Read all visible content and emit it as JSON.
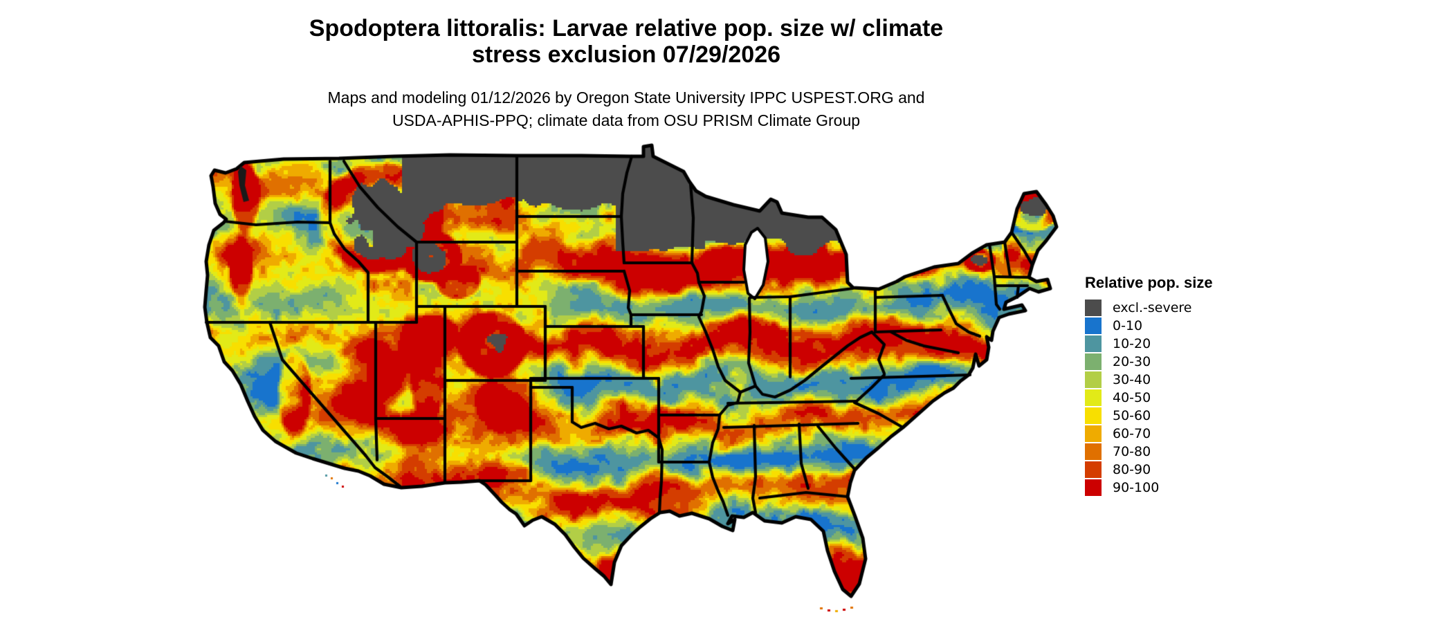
{
  "title": {
    "line1": "Spodoptera littoralis: Larvae relative pop. size w/ climate",
    "line2": "stress exclusion 07/29/2026"
  },
  "subtitle": {
    "line1": "Maps and modeling 01/12/2026 by Oregon State University IPPC USPEST.ORG and",
    "line2": "USDA-APHIS-PPQ; climate data from OSU PRISM Climate Group"
  },
  "legend": {
    "title": "Relative pop. size",
    "items": [
      {
        "label": "excl.-severe",
        "color": "#4C4C4C"
      },
      {
        "label": "0-10",
        "color": "#1874CD"
      },
      {
        "label": "10-20",
        "color": "#4E95A0"
      },
      {
        "label": "20-30",
        "color": "#7CB06F"
      },
      {
        "label": "30-40",
        "color": "#B2CE46"
      },
      {
        "label": "40-50",
        "color": "#E2EA18"
      },
      {
        "label": "50-60",
        "color": "#F8DF00"
      },
      {
        "label": "60-70",
        "color": "#EFAB00"
      },
      {
        "label": "70-80",
        "color": "#E07000"
      },
      {
        "label": "80-90",
        "color": "#D43D00"
      },
      {
        "label": "90-100",
        "color": "#CC0000"
      }
    ]
  },
  "map": {
    "outline_color": "#000000",
    "water_color": "#ffffff"
  }
}
